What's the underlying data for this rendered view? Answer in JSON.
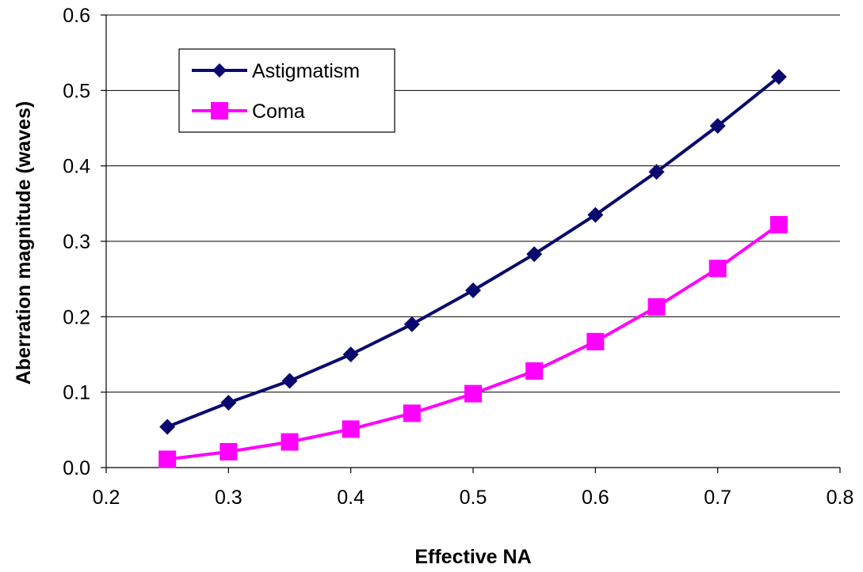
{
  "chart_data": {
    "type": "line",
    "title": "",
    "xlabel": "Effective NA",
    "ylabel": "Aberration magnitude (waves)",
    "xlim": [
      0.2,
      0.8
    ],
    "ylim": [
      0.0,
      0.6
    ],
    "x_ticks": [
      "0.2",
      "0.3",
      "0.4",
      "0.5",
      "0.6",
      "0.7",
      "0.8"
    ],
    "y_ticks": [
      "0.0",
      "0.1",
      "0.2",
      "0.3",
      "0.4",
      "0.5",
      "0.6"
    ],
    "grid": "horizontal",
    "legend_position": "top-left",
    "x": [
      0.25,
      0.3,
      0.35,
      0.4,
      0.45,
      0.5,
      0.55,
      0.6,
      0.65,
      0.7,
      0.75
    ],
    "series": [
      {
        "name": "Astigmatism",
        "color": "#0a0a6e",
        "marker": "diamond",
        "values": [
          0.054,
          0.086,
          0.115,
          0.15,
          0.19,
          0.235,
          0.283,
          0.335,
          0.392,
          0.453,
          0.518
        ]
      },
      {
        "name": "Coma",
        "color": "#ff00ff",
        "marker": "square",
        "values": [
          0.011,
          0.021,
          0.034,
          0.051,
          0.072,
          0.098,
          0.128,
          0.167,
          0.213,
          0.264,
          0.322
        ]
      }
    ]
  }
}
